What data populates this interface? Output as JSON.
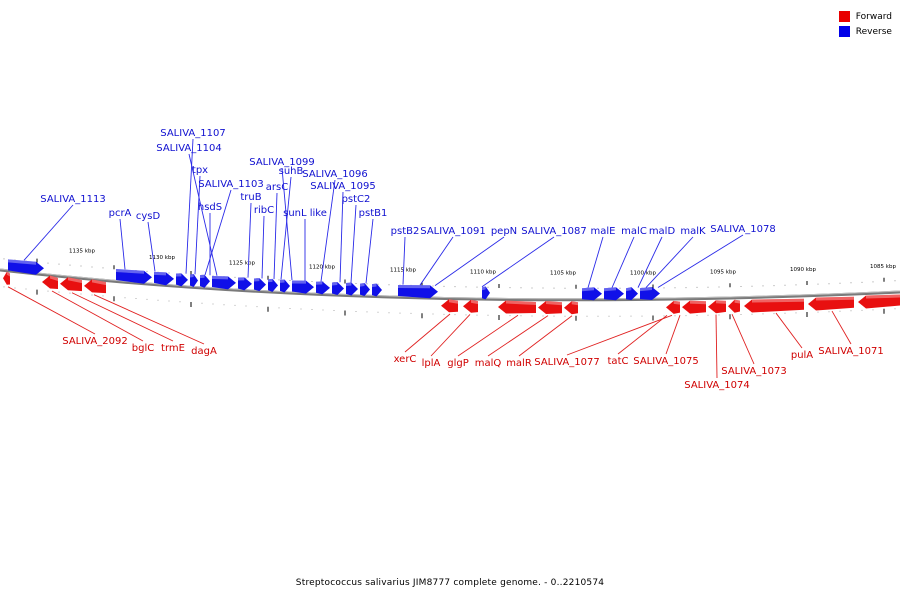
{
  "caption": "Streptococcus salivarius JIM8777 complete genome. - 0..2210574",
  "legend": [
    {
      "label": "Forward",
      "color": "#e80000"
    },
    {
      "label": "Reverse",
      "color": "#0000e8"
    }
  ],
  "scale_labels": [
    "1135 kbp",
    "1130 kbp",
    "1125 kbp",
    "1120 kbp",
    "1115 kbp",
    "1110 kbp",
    "1105 kbp",
    "1100 kbp",
    "1095 kbp",
    "1090 kbp",
    "1085 kbp"
  ],
  "reverse_genes": [
    "SALIVA_1113",
    "pcrA",
    "cysD",
    "SALIVA_1107",
    "SALIVA_1104",
    "tpx",
    "SALIVA_1103",
    "hsdS",
    "truB",
    "ribC",
    "arsC",
    "suhB",
    "SALIVA_1099",
    "sunL like",
    "SALIVA_1096",
    "SALIVA_1095",
    "pstC2",
    "pstB1",
    "pstB2",
    "SALIVA_1091",
    "pepN",
    "SALIVA_1087",
    "malE",
    "malC",
    "malD",
    "malK",
    "SALIVA_1078"
  ],
  "forward_genes": [
    "SALIVA_2092",
    "bglC",
    "trmE",
    "dagA",
    "xerC",
    "lplA",
    "glgP",
    "malQ",
    "malR",
    "SALIVA_1077",
    "tatC",
    "SALIVA_1075",
    "SALIVA_1074",
    "SALIVA_1073",
    "pulA",
    "SALIVA_1071"
  ]
}
